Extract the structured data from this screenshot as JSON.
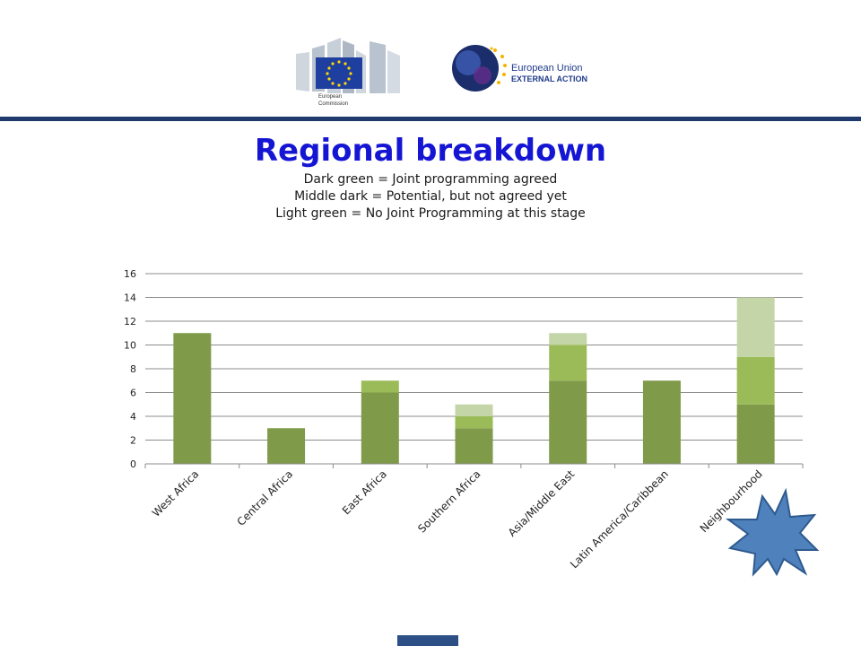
{
  "header": {
    "ec_logo_line1": "European",
    "ec_logo_line2": "Commission",
    "eeas_line1": "European Union",
    "eeas_line2": "EXTERNAL ACTION"
  },
  "slide": {
    "title": "Regional breakdown",
    "subtitle_lines": [
      "Dark green = Joint programming agreed",
      "Middle dark = Potential, but not agreed yet",
      "Light green = No Joint Programming at this stage"
    ]
  },
  "colors": {
    "title": "#1515d4",
    "dark_green": "#7f9a48",
    "middle_green": "#9bbb59",
    "light_green": "#c4d5a8",
    "starburst": "#4f81bd",
    "rule": "#1f3b6e"
  },
  "icons": [
    "european-commission-logo",
    "eeas-logo",
    "starburst-shape"
  ],
  "chart_data": {
    "type": "bar",
    "stacked": true,
    "categories": [
      "West Africa",
      "Central Africa",
      "East Africa",
      "Southern Africa",
      "Asia/Middle East",
      "Latin America/Caribbean",
      "Neighbourhood"
    ],
    "series": [
      {
        "values": [
          11,
          3,
          6,
          3,
          7,
          7,
          5
        ],
        "color": "#7f9a48"
      },
      {
        "values": [
          0,
          0,
          1,
          1,
          3,
          0,
          4
        ],
        "color": "#9bbb59"
      },
      {
        "values": [
          0,
          0,
          0,
          1,
          1,
          0,
          5
        ],
        "color": "#c4d5a8"
      }
    ],
    "ylim": [
      0,
      16
    ],
    "yticks": [
      0,
      2,
      4,
      6,
      8,
      10,
      12,
      14,
      16
    ],
    "grid": true,
    "legend": "none"
  }
}
